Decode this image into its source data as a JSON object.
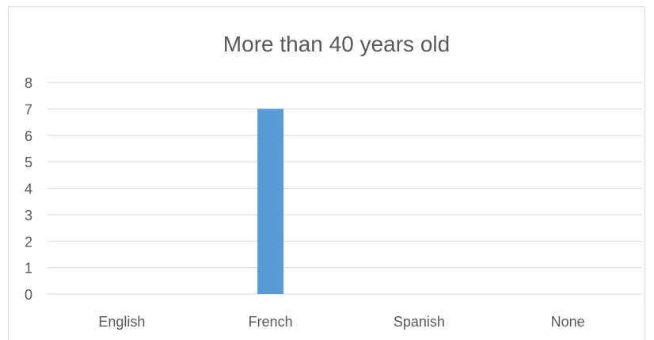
{
  "chart_data": {
    "type": "bar",
    "title": "More than 40 years old",
    "categories": [
      "English",
      "French",
      "Spanish",
      "None"
    ],
    "values": [
      0,
      7,
      0,
      0
    ],
    "ylim": [
      0,
      8
    ],
    "yticks": [
      0,
      1,
      2,
      3,
      4,
      5,
      6,
      7,
      8
    ],
    "grid": true,
    "xlabel": "",
    "ylabel": "",
    "colors": {
      "bar": "#5b9bd5",
      "grid": "#d9d9d9",
      "text": "#595959",
      "border": "#d9d9d9"
    }
  }
}
